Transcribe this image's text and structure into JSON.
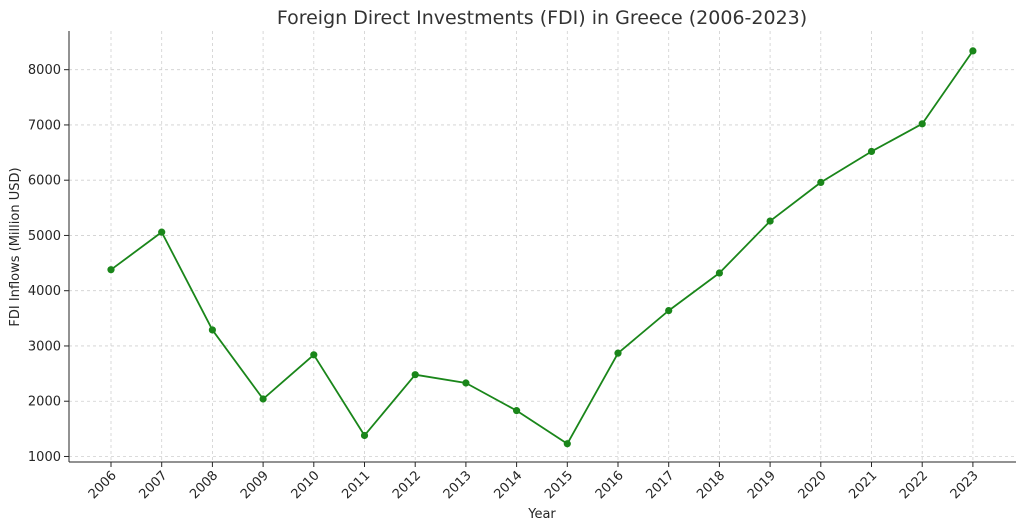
{
  "chart_data": {
    "type": "line",
    "title": "Foreign Direct Investments (FDI) in Greece (2006-2023)",
    "xlabel": "Year",
    "ylabel": "FDI Inflows (Million USD)",
    "x": [
      "2006",
      "2007",
      "2008",
      "2009",
      "2010",
      "2011",
      "2012",
      "2013",
      "2014",
      "2015",
      "2016",
      "2017",
      "2018",
      "2019",
      "2020",
      "2021",
      "2022",
      "2023"
    ],
    "series": [
      {
        "values": [
          4380,
          5060,
          3290,
          2040,
          2840,
          1380,
          2480,
          2330,
          1830,
          1230,
          2870,
          3640,
          4320,
          5260,
          5960,
          6520,
          7020,
          8340
        ]
      }
    ],
    "yticks": [
      1000,
      2000,
      3000,
      4000,
      5000,
      6000,
      7000,
      8000
    ],
    "ylim": [
      900,
      8700
    ],
    "grid": true,
    "line_color": "#1a861a",
    "marker_color": "#1a861a"
  }
}
